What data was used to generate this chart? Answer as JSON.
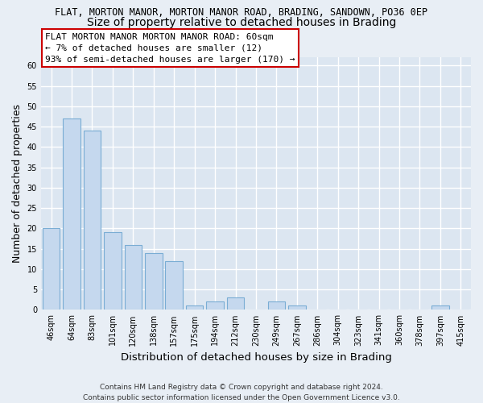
{
  "title_line1": "FLAT, MORTON MANOR, MORTON MANOR ROAD, BRADING, SANDOWN, PO36 0EP",
  "title_line2": "Size of property relative to detached houses in Brading",
  "xlabel": "Distribution of detached houses by size in Brading",
  "ylabel": "Number of detached properties",
  "categories": [
    "46sqm",
    "64sqm",
    "83sqm",
    "101sqm",
    "120sqm",
    "138sqm",
    "157sqm",
    "175sqm",
    "194sqm",
    "212sqm",
    "230sqm",
    "249sqm",
    "267sqm",
    "286sqm",
    "304sqm",
    "323sqm",
    "341sqm",
    "360sqm",
    "378sqm",
    "397sqm",
    "415sqm"
  ],
  "values": [
    20,
    47,
    44,
    19,
    16,
    14,
    12,
    1,
    2,
    3,
    0,
    2,
    1,
    0,
    0,
    0,
    0,
    0,
    0,
    1,
    0
  ],
  "bar_color": "#c5d8ee",
  "bar_edge_color": "#7aadd4",
  "annotation_line1": "FLAT MORTON MANOR MORTON MANOR ROAD: 60sqm",
  "annotation_line2": "← 7% of detached houses are smaller (12)",
  "annotation_line3": "93% of semi-detached houses are larger (170) →",
  "annotation_box_color": "#ffffff",
  "annotation_box_edge": "#cc0000",
  "ylim": [
    0,
    62
  ],
  "yticks": [
    0,
    5,
    10,
    15,
    20,
    25,
    30,
    35,
    40,
    45,
    50,
    55,
    60
  ],
  "footer_line1": "Contains HM Land Registry data © Crown copyright and database right 2024.",
  "footer_line2": "Contains public sector information licensed under the Open Government Licence v3.0.",
  "background_color": "#e8eef5",
  "plot_background_color": "#dce6f1",
  "grid_color": "#ffffff",
  "title1_fontsize": 8.5,
  "title2_fontsize": 10,
  "axis_label_fontsize": 9,
  "tick_fontsize": 7,
  "annotation_fontsize": 8,
  "footer_fontsize": 6.5
}
